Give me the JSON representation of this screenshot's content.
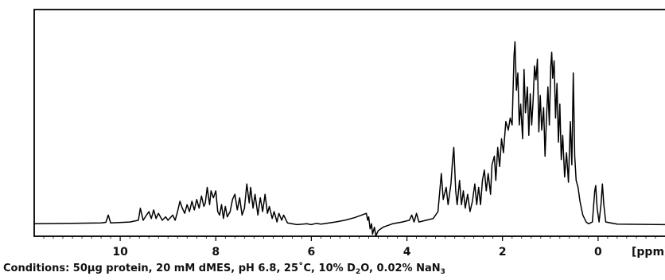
{
  "chart_data": {
    "type": "line",
    "title": "",
    "xlabel": "",
    "ylabel": "",
    "x_unit": "[ppm]",
    "x_reversed": true,
    "xlim": [
      11.8,
      -1.4
    ],
    "ylim": [
      -3,
      120
    ],
    "grid": false,
    "x_ticks": [
      {
        "value": 10,
        "label": "10"
      },
      {
        "value": 8,
        "label": "8"
      },
      {
        "value": 6,
        "label": "6"
      },
      {
        "value": 4,
        "label": "4"
      },
      {
        "value": 2,
        "label": "2"
      },
      {
        "value": 0,
        "label": "0"
      }
    ],
    "x_unit_label": "[ppm]",
    "series": [
      {
        "points": [
          [
            11.8,
            1
          ],
          [
            11.0,
            1.2
          ],
          [
            10.4,
            1.5
          ],
          [
            10.3,
            1.8
          ],
          [
            10.25,
            6
          ],
          [
            10.2,
            1.5
          ],
          [
            9.8,
            2
          ],
          [
            9.62,
            3
          ],
          [
            9.58,
            10
          ],
          [
            9.52,
            3
          ],
          [
            9.45,
            6
          ],
          [
            9.4,
            8
          ],
          [
            9.35,
            4
          ],
          [
            9.3,
            9
          ],
          [
            9.25,
            4
          ],
          [
            9.2,
            7
          ],
          [
            9.12,
            3
          ],
          [
            9.05,
            5
          ],
          [
            9.0,
            3
          ],
          [
            8.9,
            6
          ],
          [
            8.85,
            3
          ],
          [
            8.8,
            8
          ],
          [
            8.75,
            14
          ],
          [
            8.7,
            10
          ],
          [
            8.65,
            7
          ],
          [
            8.6,
            12
          ],
          [
            8.55,
            8
          ],
          [
            8.5,
            14
          ],
          [
            8.45,
            9
          ],
          [
            8.4,
            15
          ],
          [
            8.35,
            10
          ],
          [
            8.3,
            17
          ],
          [
            8.25,
            11
          ],
          [
            8.22,
            13
          ],
          [
            8.18,
            22
          ],
          [
            8.13,
            12
          ],
          [
            8.1,
            20
          ],
          [
            8.05,
            16
          ],
          [
            8.0,
            20
          ],
          [
            7.96,
            8
          ],
          [
            7.92,
            6
          ],
          [
            7.88,
            12
          ],
          [
            7.84,
            4
          ],
          [
            7.8,
            11
          ],
          [
            7.76,
            5
          ],
          [
            7.7,
            8
          ],
          [
            7.65,
            15
          ],
          [
            7.6,
            18
          ],
          [
            7.55,
            9
          ],
          [
            7.5,
            16
          ],
          [
            7.45,
            6
          ],
          [
            7.4,
            10
          ],
          [
            7.35,
            24
          ],
          [
            7.3,
            13
          ],
          [
            7.27,
            22
          ],
          [
            7.22,
            10
          ],
          [
            7.18,
            18
          ],
          [
            7.12,
            6
          ],
          [
            7.07,
            16
          ],
          [
            7.02,
            8
          ],
          [
            6.97,
            18
          ],
          [
            6.92,
            7
          ],
          [
            6.88,
            11
          ],
          [
            6.82,
            4
          ],
          [
            6.78,
            8
          ],
          [
            6.72,
            2
          ],
          [
            6.68,
            7
          ],
          [
            6.62,
            3
          ],
          [
            6.58,
            6
          ],
          [
            6.5,
            1.5
          ],
          [
            6.3,
            0.5
          ],
          [
            6.1,
            1
          ],
          [
            6.0,
            0.5
          ],
          [
            5.9,
            1.2
          ],
          [
            5.8,
            0.8
          ],
          [
            5.5,
            2
          ],
          [
            5.3,
            3
          ],
          [
            5.1,
            4.5
          ],
          [
            4.95,
            6
          ],
          [
            4.85,
            7
          ],
          [
            4.82,
            3
          ],
          [
            4.8,
            5
          ],
          [
            4.77,
            -2
          ],
          [
            4.74,
            1
          ],
          [
            4.72,
            -5
          ],
          [
            4.68,
            -1
          ],
          [
            4.65,
            -6
          ],
          [
            4.6,
            -3
          ],
          [
            4.5,
            -1
          ],
          [
            4.3,
            1
          ],
          [
            4.1,
            2
          ],
          [
            3.95,
            3
          ],
          [
            3.9,
            6
          ],
          [
            3.85,
            2
          ],
          [
            3.8,
            7
          ],
          [
            3.75,
            2
          ],
          [
            3.6,
            3
          ],
          [
            3.45,
            4
          ],
          [
            3.35,
            8
          ],
          [
            3.28,
            30
          ],
          [
            3.24,
            15
          ],
          [
            3.18,
            22
          ],
          [
            3.14,
            12
          ],
          [
            3.08,
            24
          ],
          [
            3.05,
            36
          ],
          [
            3.02,
            45
          ],
          [
            2.98,
            20
          ],
          [
            2.95,
            12
          ],
          [
            2.9,
            26
          ],
          [
            2.86,
            12
          ],
          [
            2.82,
            20
          ],
          [
            2.78,
            10
          ],
          [
            2.73,
            18
          ],
          [
            2.68,
            8
          ],
          [
            2.63,
            14
          ],
          [
            2.58,
            24
          ],
          [
            2.54,
            12
          ],
          [
            2.5,
            22
          ],
          [
            2.46,
            12
          ],
          [
            2.42,
            26
          ],
          [
            2.38,
            32
          ],
          [
            2.34,
            20
          ],
          [
            2.3,
            30
          ],
          [
            2.25,
            18
          ],
          [
            2.22,
            35
          ],
          [
            2.17,
            40
          ],
          [
            2.14,
            26
          ],
          [
            2.1,
            45
          ],
          [
            2.06,
            34
          ],
          [
            2.02,
            50
          ],
          [
            1.98,
            42
          ],
          [
            1.93,
            60
          ],
          [
            1.88,
            55
          ],
          [
            1.84,
            62
          ],
          [
            1.8,
            58
          ],
          [
            1.76,
            98
          ],
          [
            1.74,
            106
          ],
          [
            1.71,
            78
          ],
          [
            1.68,
            88
          ],
          [
            1.65,
            58
          ],
          [
            1.62,
            70
          ],
          [
            1.58,
            50
          ],
          [
            1.55,
            90
          ],
          [
            1.52,
            65
          ],
          [
            1.48,
            80
          ],
          [
            1.45,
            52
          ],
          [
            1.42,
            76
          ],
          [
            1.39,
            58
          ],
          [
            1.36,
            72
          ],
          [
            1.33,
            92
          ],
          [
            1.3,
            84
          ],
          [
            1.27,
            96
          ],
          [
            1.24,
            54
          ],
          [
            1.21,
            75
          ],
          [
            1.18,
            55
          ],
          [
            1.14,
            68
          ],
          [
            1.11,
            40
          ],
          [
            1.08,
            62
          ],
          [
            1.05,
            80
          ],
          [
            1.02,
            58
          ],
          [
            0.99,
            92
          ],
          [
            0.97,
            100
          ],
          [
            0.95,
            85
          ],
          [
            0.92,
            95
          ],
          [
            0.89,
            62
          ],
          [
            0.86,
            82
          ],
          [
            0.83,
            48
          ],
          [
            0.8,
            70
          ],
          [
            0.77,
            38
          ],
          [
            0.74,
            52
          ],
          [
            0.7,
            28
          ],
          [
            0.66,
            42
          ],
          [
            0.62,
            25
          ],
          [
            0.58,
            60
          ],
          [
            0.55,
            35
          ],
          [
            0.52,
            88
          ],
          [
            0.49,
            40
          ],
          [
            0.46,
            26
          ],
          [
            0.42,
            22
          ],
          [
            0.38,
            14
          ],
          [
            0.32,
            6
          ],
          [
            0.25,
            2
          ],
          [
            0.2,
            1
          ],
          [
            0.12,
            2
          ],
          [
            0.07,
            20
          ],
          [
            0.05,
            23
          ],
          [
            0.02,
            10
          ],
          [
            -0.02,
            2
          ],
          [
            -0.06,
            12
          ],
          [
            -0.09,
            24
          ],
          [
            -0.12,
            12
          ],
          [
            -0.16,
            2
          ],
          [
            -0.4,
            0.8
          ],
          [
            -1.4,
            0.5
          ]
        ]
      }
    ],
    "caption": {
      "prefix": "Conditions: 50µg protein, 20 mM dMES, pH 6.8, 25˚C, 10% D",
      "sub1": "2",
      "mid": "O, 0.02% NaN",
      "sub2": "3"
    }
  }
}
